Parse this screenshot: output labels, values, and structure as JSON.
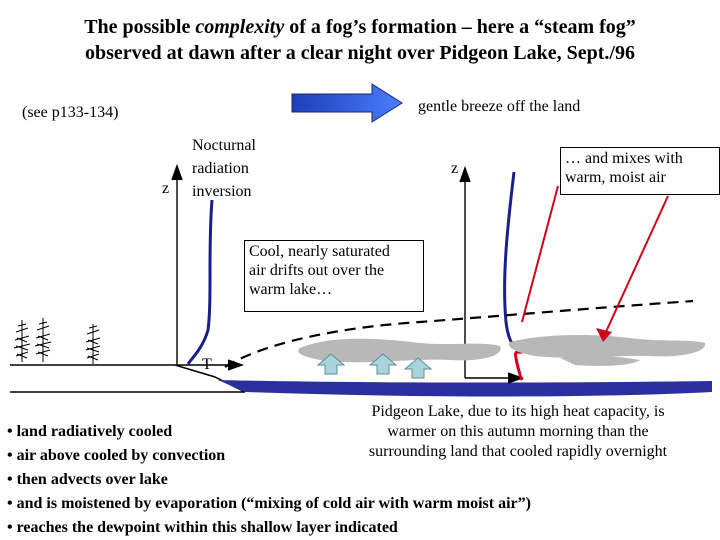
{
  "title": {
    "line1_pre": "The possible ",
    "line1_em": "complexity",
    "line1_post": " of a fog’s formation – here a “steam fog”",
    "line2": "observed at dawn after a clear night over Pidgeon Lake, Sept./96"
  },
  "reference": "(see p133-134)",
  "breeze_label": "gentle breeze off the land",
  "inversion": {
    "z_label": "z",
    "line1": "Nocturnal",
    "line2": "radiation",
    "line3": "inversion",
    "t_label": "T"
  },
  "lake_profile": {
    "z_label": "z"
  },
  "boxes": {
    "cool_air": [
      "Cool, nearly saturated",
      "air drifts out over the",
      "warm lake…"
    ],
    "mixes": [
      "… and mixes with",
      "warm, moist air"
    ]
  },
  "lake_note": [
    "Pidgeon Lake, due to its high heat capacity, is",
    "warmer on this autumn morning than the",
    "surrounding land that cooled rapidly overnight"
  ],
  "bullets": [
    "• land radiatively cooled",
    "• air above cooled by convection",
    "• then advects over lake",
    "• and is moistened by evaporation (“mixing of cold air with warm moist air”)",
    "• reaches the dewpoint within this shallow layer indicated"
  ],
  "colors": {
    "breeze_arrow": "#2f5fe0",
    "land_profile": "#1a1f8a",
    "lake_profile": "#d0021b",
    "lake": "#2a2fa0",
    "fog": "#b8b8b8",
    "evaporation_arrow": "#a9d4dc"
  }
}
